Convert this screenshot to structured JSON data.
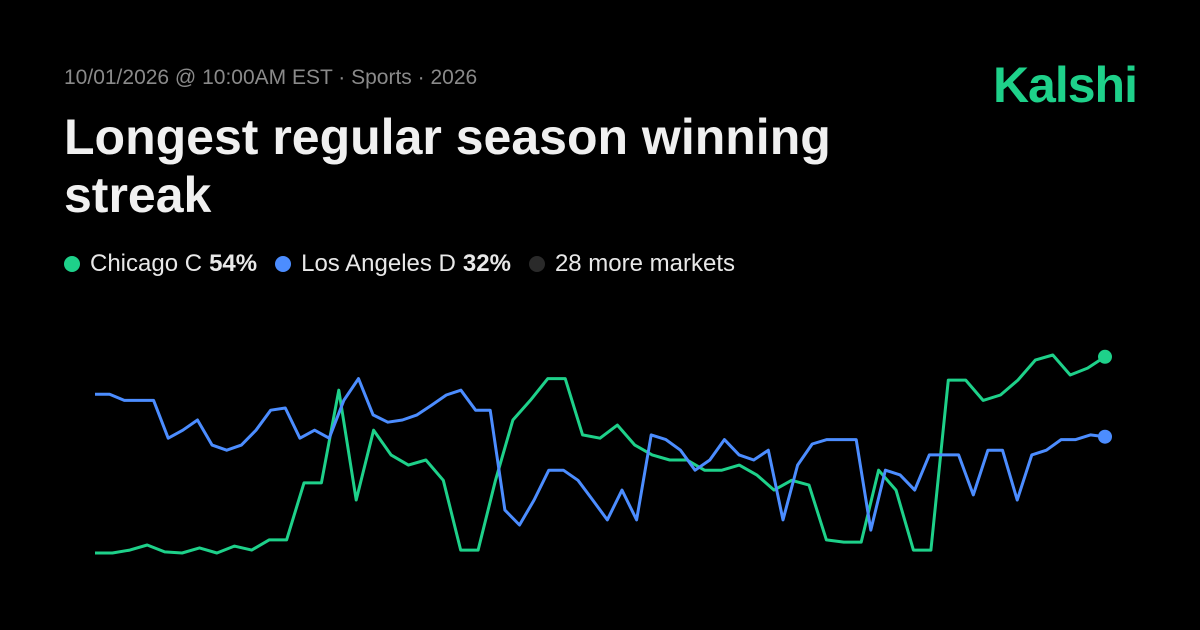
{
  "header": {
    "meta": "10/01/2026 @ 10:00AM EST · Sports · 2026",
    "brand": "Kalshi"
  },
  "chart_data": {
    "type": "line",
    "title": "Longest regular season winning streak",
    "ylim": [
      0,
      60
    ],
    "series": [
      {
        "name": "Chicago C",
        "color": "#1ed18a",
        "chance": 54,
        "chance_label": "54%",
        "values": [
          0,
          0,
          0.8,
          2.2,
          0.3,
          0,
          1.4,
          0,
          1.9,
          0.8,
          3.6,
          3.6,
          19.3,
          19.3,
          44.8,
          14.6,
          33.8,
          27,
          24.2,
          25.6,
          20,
          0.8,
          0.8,
          20,
          36.6,
          42,
          48,
          48,
          32.5,
          31.6,
          35.2,
          29.7,
          27,
          25.6,
          25.6,
          22.8,
          22.8,
          24.2,
          21.5,
          17.3,
          20,
          18.7,
          3.6,
          3,
          3,
          22.8,
          17.3,
          0.8,
          0.8,
          47.6,
          47.6,
          42,
          43.5,
          47.6,
          53.1,
          54.5,
          49,
          50.9,
          54
        ]
      },
      {
        "name": "Los Angeles D",
        "color": "#4c8dff",
        "chance": 32,
        "chance_label": "32%",
        "values": [
          43.7,
          43.7,
          42,
          42,
          42,
          31.6,
          33.8,
          36.6,
          29.7,
          28.3,
          29.7,
          33.8,
          39.3,
          39.9,
          31.6,
          33.8,
          31.6,
          42,
          48,
          38,
          36,
          36.6,
          38,
          40.7,
          43.5,
          44.8,
          39.3,
          39.3,
          11.8,
          7.7,
          14.6,
          22.8,
          22.8,
          20,
          14.6,
          9.1,
          17.3,
          9.1,
          32.5,
          31.2,
          28.3,
          22.8,
          25.6,
          31.2,
          27,
          25.6,
          28.3,
          9.1,
          24.2,
          30,
          31.2,
          31.2,
          31.2,
          6.3,
          22.8,
          21.5,
          17.3,
          27,
          27,
          27,
          16,
          28.3,
          28.3,
          14.6,
          27,
          28.3,
          31.2,
          31.2,
          32.5,
          32
        ]
      }
    ],
    "more_markets": "28 more markets",
    "more_color": "#2a2a2a"
  }
}
